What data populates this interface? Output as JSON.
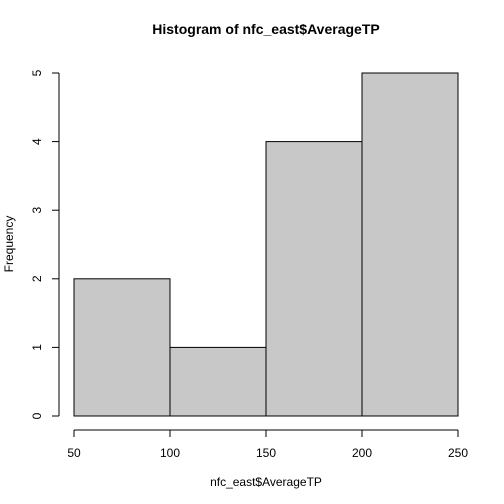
{
  "chart_data": {
    "type": "bar",
    "title": "Histogram of nfc_east$AverageTP",
    "xlabel": "nfc_east$AverageTP",
    "ylabel": "Frequency",
    "bins": [
      {
        "start": 50,
        "end": 100,
        "count": 2
      },
      {
        "start": 100,
        "end": 150,
        "count": 1
      },
      {
        "start": 150,
        "end": 200,
        "count": 4
      },
      {
        "start": 200,
        "end": 250,
        "count": 5
      }
    ],
    "xlim": [
      50,
      250
    ],
    "ylim": [
      0,
      5
    ],
    "x_ticks": [
      50,
      100,
      150,
      200,
      250
    ],
    "y_ticks": [
      0,
      1,
      2,
      3,
      4,
      5
    ],
    "grid": false,
    "colors": {
      "bar_fill": "#c8c8c8",
      "bar_stroke": "#000000"
    }
  }
}
